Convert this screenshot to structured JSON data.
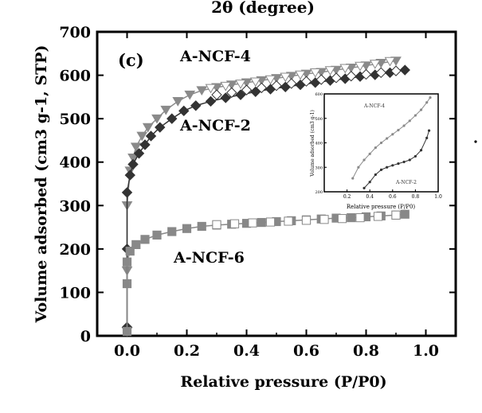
{
  "chart_data": {
    "type": "scatter",
    "top_label": "2θ (degree)",
    "panel_label": "(c)",
    "xlabel": "Relative pressure (P/P0)",
    "ylabel": "Volume adsorbed (cm3 g-1, STP)",
    "xlim": [
      -0.1,
      1.1
    ],
    "ylim": [
      0,
      700
    ],
    "xticks": [
      "0.0",
      "0.2",
      "0.4",
      "0.6",
      "0.8",
      "1.0"
    ],
    "yticks": [
      "0",
      "100",
      "200",
      "300",
      "400",
      "500",
      "600",
      "700"
    ],
    "series": [
      {
        "name": "A-NCF-4",
        "color": "#8a8a8a",
        "marker": "triangle-down",
        "adsorption": [
          [
            0.0,
            10
          ],
          [
            0.0,
            150
          ],
          [
            0.0,
            300
          ],
          [
            0.01,
            380
          ],
          [
            0.02,
            410
          ],
          [
            0.03,
            435
          ],
          [
            0.05,
            460
          ],
          [
            0.07,
            480
          ],
          [
            0.1,
            500
          ],
          [
            0.13,
            520
          ],
          [
            0.17,
            540
          ],
          [
            0.21,
            555
          ],
          [
            0.25,
            565
          ],
          [
            0.3,
            572
          ],
          [
            0.35,
            578
          ],
          [
            0.4,
            583
          ],
          [
            0.45,
            588
          ],
          [
            0.5,
            593
          ],
          [
            0.55,
            598
          ],
          [
            0.6,
            603
          ],
          [
            0.65,
            607
          ],
          [
            0.7,
            612
          ],
          [
            0.75,
            617
          ],
          [
            0.8,
            622
          ],
          [
            0.85,
            628
          ],
          [
            0.9,
            633
          ]
        ],
        "desorption": [
          [
            0.28,
            570
          ],
          [
            0.33,
            575
          ],
          [
            0.38,
            580
          ],
          [
            0.43,
            585
          ],
          [
            0.48,
            590
          ],
          [
            0.53,
            596
          ],
          [
            0.58,
            601
          ],
          [
            0.63,
            606
          ],
          [
            0.68,
            611
          ],
          [
            0.73,
            616
          ],
          [
            0.78,
            621
          ],
          [
            0.83,
            626
          ],
          [
            0.88,
            632
          ]
        ]
      },
      {
        "name": "A-NCF-2",
        "color": "#333333",
        "marker": "diamond",
        "adsorption": [
          [
            0.0,
            20
          ],
          [
            0.0,
            200
          ],
          [
            0.0,
            330
          ],
          [
            0.01,
            370
          ],
          [
            0.02,
            395
          ],
          [
            0.04,
            420
          ],
          [
            0.06,
            440
          ],
          [
            0.08,
            460
          ],
          [
            0.11,
            480
          ],
          [
            0.15,
            500
          ],
          [
            0.19,
            518
          ],
          [
            0.23,
            530
          ],
          [
            0.28,
            540
          ],
          [
            0.33,
            548
          ],
          [
            0.38,
            555
          ],
          [
            0.43,
            562
          ],
          [
            0.48,
            568
          ],
          [
            0.53,
            573
          ],
          [
            0.58,
            578
          ],
          [
            0.63,
            583
          ],
          [
            0.68,
            588
          ],
          [
            0.73,
            592
          ],
          [
            0.78,
            597
          ],
          [
            0.83,
            601
          ],
          [
            0.88,
            606
          ],
          [
            0.93,
            612
          ]
        ],
        "desorption": [
          [
            0.3,
            555
          ],
          [
            0.35,
            560
          ],
          [
            0.4,
            566
          ],
          [
            0.45,
            571
          ],
          [
            0.5,
            576
          ],
          [
            0.55,
            581
          ],
          [
            0.6,
            586
          ],
          [
            0.65,
            590
          ],
          [
            0.7,
            594
          ],
          [
            0.75,
            598
          ],
          [
            0.8,
            602
          ],
          [
            0.85,
            606
          ],
          [
            0.9,
            610
          ]
        ]
      },
      {
        "name": "A-NCF-6",
        "color": "#888888",
        "marker": "square",
        "adsorption": [
          [
            0.0,
            10
          ],
          [
            0.0,
            120
          ],
          [
            0.0,
            170
          ],
          [
            0.01,
            195
          ],
          [
            0.03,
            210
          ],
          [
            0.06,
            222
          ],
          [
            0.1,
            232
          ],
          [
            0.15,
            240
          ],
          [
            0.2,
            247
          ],
          [
            0.25,
            252
          ],
          [
            0.3,
            255
          ],
          [
            0.35,
            257
          ],
          [
            0.4,
            259
          ],
          [
            0.45,
            261
          ],
          [
            0.5,
            263
          ],
          [
            0.55,
            265
          ],
          [
            0.6,
            267
          ],
          [
            0.65,
            269
          ],
          [
            0.7,
            271
          ],
          [
            0.75,
            272
          ],
          [
            0.8,
            274
          ],
          [
            0.85,
            276
          ],
          [
            0.9,
            278
          ],
          [
            0.93,
            280
          ]
        ],
        "desorption": [
          [
            0.3,
            256
          ],
          [
            0.36,
            258
          ],
          [
            0.42,
            260
          ],
          [
            0.48,
            262
          ],
          [
            0.54,
            264
          ],
          [
            0.6,
            266
          ],
          [
            0.66,
            268
          ],
          [
            0.72,
            270
          ],
          [
            0.78,
            272
          ],
          [
            0.84,
            275
          ],
          [
            0.9,
            278
          ]
        ]
      }
    ],
    "inset": {
      "xlabel": "Relative pressure (P/P0)",
      "ylabel": "Volume adsorbed (cm3 g-1)",
      "xlim": [
        0.0,
        1.0
      ],
      "ylim": [
        200,
        600
      ],
      "xticks": [
        "0.2",
        "0.4",
        "0.6",
        "0.8",
        "1.0"
      ],
      "yticks": [
        "200",
        "300",
        "400",
        "500",
        "600"
      ],
      "series": [
        {
          "name": "A-NCF-4",
          "color": "#8a8a8a",
          "points": [
            [
              0.25,
              255
            ],
            [
              0.3,
              300
            ],
            [
              0.35,
              330
            ],
            [
              0.4,
              355
            ],
            [
              0.45,
              380
            ],
            [
              0.5,
              400
            ],
            [
              0.55,
              418
            ],
            [
              0.6,
              435
            ],
            [
              0.65,
              452
            ],
            [
              0.7,
              470
            ],
            [
              0.75,
              490
            ],
            [
              0.8,
              512
            ],
            [
              0.85,
              535
            ],
            [
              0.9,
              565
            ],
            [
              0.93,
              585
            ]
          ]
        },
        {
          "name": "A-NCF-2",
          "color": "#333333",
          "points": [
            [
              0.35,
              215
            ],
            [
              0.4,
              240
            ],
            [
              0.45,
              270
            ],
            [
              0.5,
              290
            ],
            [
              0.55,
              300
            ],
            [
              0.6,
              308
            ],
            [
              0.65,
              315
            ],
            [
              0.7,
              322
            ],
            [
              0.75,
              330
            ],
            [
              0.8,
              345
            ],
            [
              0.85,
              370
            ],
            [
              0.9,
              420
            ],
            [
              0.92,
              450
            ]
          ]
        }
      ]
    }
  }
}
